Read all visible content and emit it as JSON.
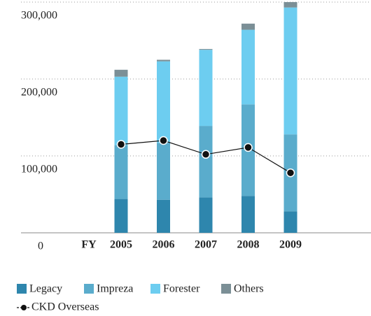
{
  "chart_data": {
    "type": "bar",
    "stacked": true,
    "xlabel": "FY",
    "categories": [
      "2005",
      "2006",
      "2007",
      "2008",
      "2009"
    ],
    "series": [
      {
        "name": "Legacy",
        "color": "#2e86ad",
        "values": [
          44000,
          43000,
          46000,
          48000,
          28000
        ]
      },
      {
        "name": "Impreza",
        "color": "#5aaccc",
        "values": [
          70000,
          74000,
          93000,
          119000,
          100000
        ]
      },
      {
        "name": "Forester",
        "color": "#6dcdf0",
        "values": [
          89000,
          106000,
          99000,
          97000,
          165000
        ]
      },
      {
        "name": "Others",
        "color": "#7b8f96",
        "values": [
          9000,
          2000,
          1000,
          8000,
          7000
        ]
      },
      {
        "name": "CKD Overseas",
        "color": "#111111",
        "type": "line",
        "values": [
          115000,
          120000,
          102000,
          111000,
          78000
        ]
      }
    ],
    "ylim": [
      0,
      300000
    ],
    "yticks": [
      0,
      {
        "value": 100000,
        "label": "100,000"
      },
      {
        "value": 200000,
        "label": "200,000"
      },
      {
        "value": 300000,
        "label": "300,000"
      }
    ],
    "grid": true,
    "legend": "bottom"
  }
}
